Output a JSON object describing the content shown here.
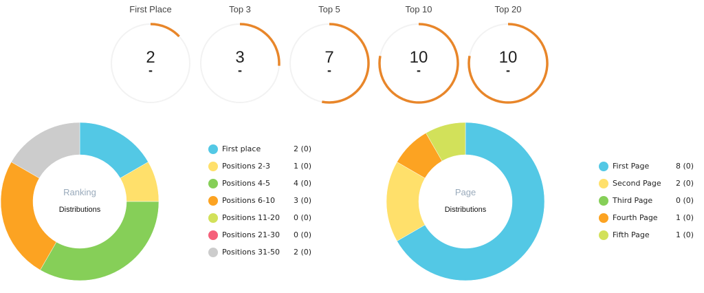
{
  "gauges": [
    {
      "title": "First Place",
      "value": "2",
      "change": "-",
      "fraction": 0.13
    },
    {
      "title": "Top 3",
      "value": "3",
      "change": "-",
      "fraction": 0.26
    },
    {
      "title": "Top 5",
      "value": "7",
      "change": "-",
      "fraction": 0.53
    },
    {
      "title": "Top 10",
      "value": "10",
      "change": "-",
      "fraction": 0.78
    },
    {
      "title": "Top 20",
      "value": "10",
      "change": "-",
      "fraction": 0.78
    }
  ],
  "colors": {
    "gauge_arc": "#e8862a",
    "gauge_track": "#f2f2f2"
  },
  "chart_data": [
    {
      "type": "pie",
      "center_title": "Ranking",
      "center_subtitle": "Distributions",
      "slices": [
        {
          "label": "First place",
          "value": 2,
          "display": "2 (0)",
          "color": "#53c8e5"
        },
        {
          "label": "Positions 2-3",
          "value": 1,
          "display": "1 (0)",
          "color": "#ffe06b"
        },
        {
          "label": "Positions 4-5",
          "value": 4,
          "display": "4 (0)",
          "color": "#86cf58"
        },
        {
          "label": "Positions 6-10",
          "value": 3,
          "display": "3 (0)",
          "color": "#fca322"
        },
        {
          "label": "Positions 11-20",
          "value": 0,
          "display": "0 (0)",
          "color": "#d2e15a"
        },
        {
          "label": "Positions 21-30",
          "value": 0,
          "display": "0 (0)",
          "color": "#f5607a"
        },
        {
          "label": "Positions 31-50",
          "value": 2,
          "display": "2 (0)",
          "color": "#cccccc"
        }
      ]
    },
    {
      "type": "pie",
      "center_title": "Page",
      "center_subtitle": "Distributions",
      "slices": [
        {
          "label": "First Page",
          "value": 8,
          "display": "8 (0)",
          "color": "#53c8e5"
        },
        {
          "label": "Second Page",
          "value": 2,
          "display": "2 (0)",
          "color": "#ffe06b"
        },
        {
          "label": "Third Page",
          "value": 0,
          "display": "0 (0)",
          "color": "#86cf58"
        },
        {
          "label": "Fourth Page",
          "value": 1,
          "display": "1 (0)",
          "color": "#fca322"
        },
        {
          "label": "Fifth Page",
          "value": 1,
          "display": "1 (0)",
          "color": "#d2e15a"
        }
      ]
    }
  ]
}
